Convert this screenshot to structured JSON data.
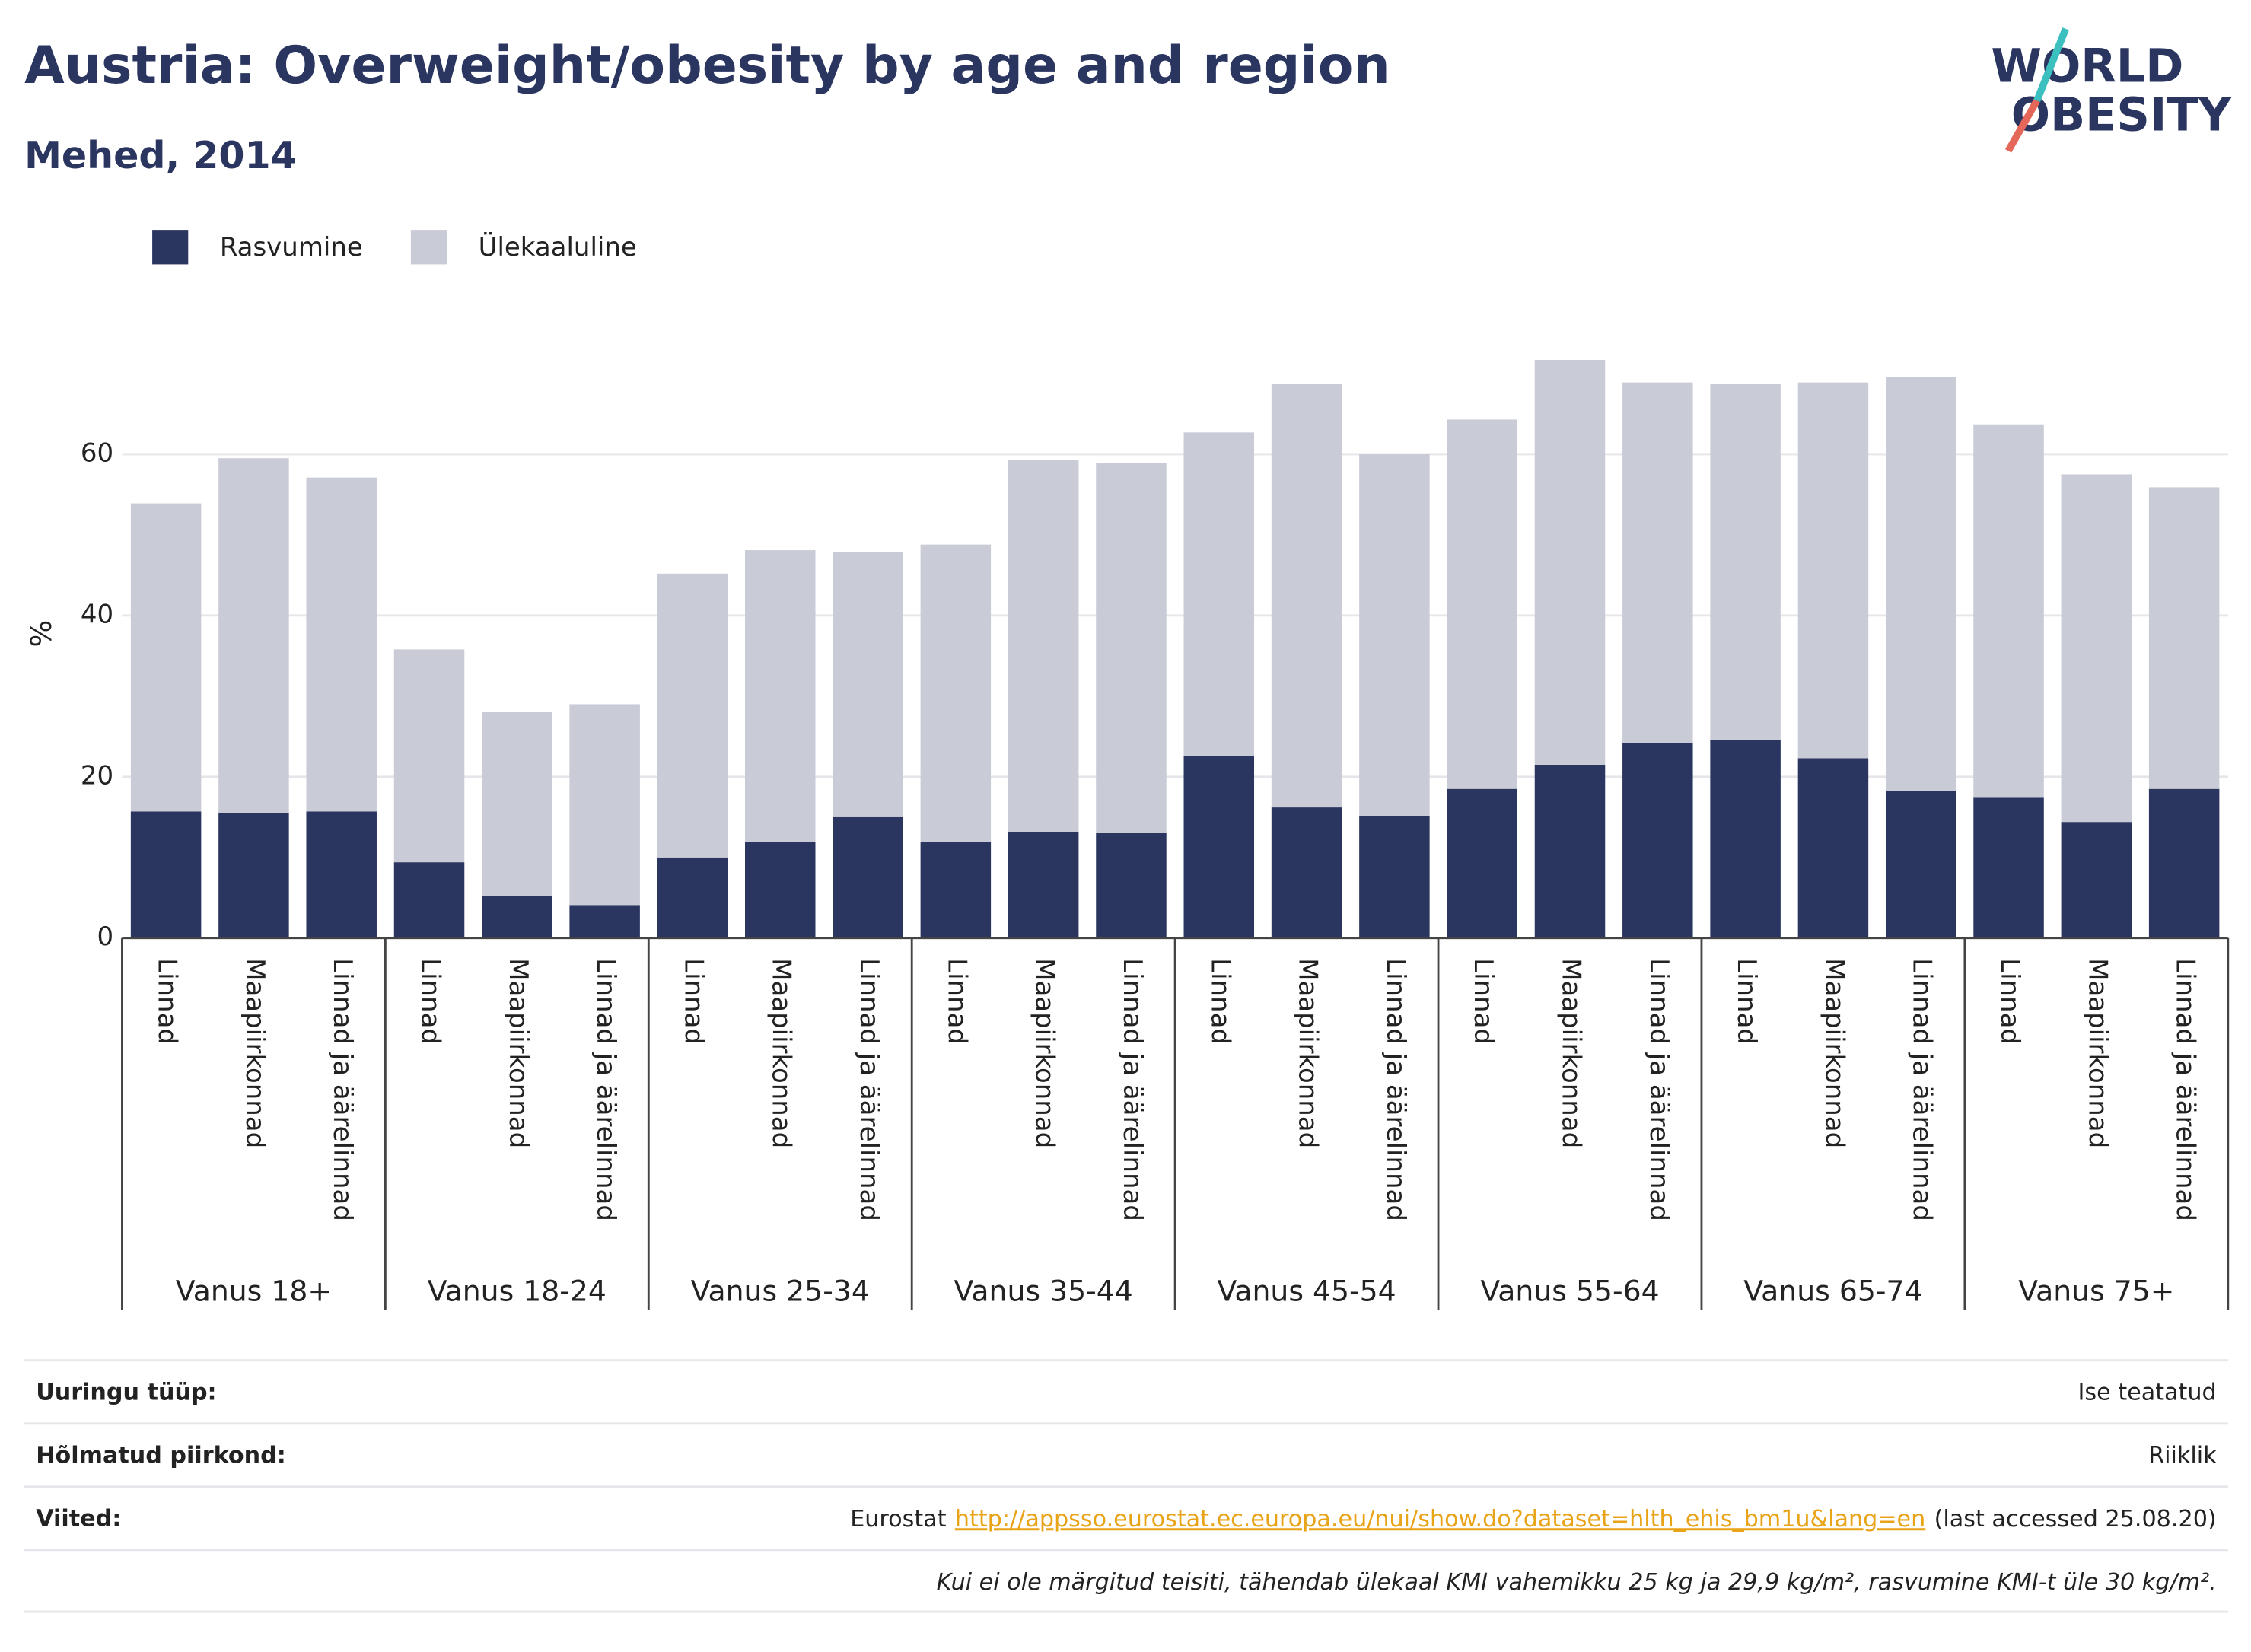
{
  "chart_data": {
    "type": "stacked-bar",
    "title": "Austria: Overweight/obesity by age and region",
    "subtitle": "Mehed, 2014",
    "ylabel": "%",
    "categories": [
      "Linnad",
      "Maapiirkonnad",
      "Linnad ja äärelinnad",
      "Linnad",
      "Maapiirkonnad",
      "Linnad ja äärelinnad",
      "Linnad",
      "Maapiirkonnad",
      "Linnad ja äärelinnad",
      "Linnad",
      "Maapiirkonnad",
      "Linnad ja äärelinnad",
      "Linnad",
      "Maapiirkonnad",
      "Linnad ja äärelinnad",
      "Linnad",
      "Maapiirkonnad",
      "Linnad ja äärelinnad",
      "Linnad",
      "Maapiirkonnad",
      "Linnad ja äärelinnad",
      "Linnad",
      "Maapiirkonnad",
      "Linnad ja äärelinnad"
    ],
    "groups": [
      "Vanus 18+",
      "Vanus 18-24",
      "Vanus 25-34",
      "Vanus 35-44",
      "Vanus 45-54",
      "Vanus 55-64",
      "Vanus 65-74",
      "Vanus 75+"
    ],
    "series": [
      {
        "name": "Rasvumine",
        "color": "#2a3560",
        "values": [
          15.7,
          15.5,
          15.7,
          9.4,
          5.2,
          4.1,
          10.0,
          11.9,
          15.0,
          11.9,
          13.2,
          13.0,
          22.6,
          16.2,
          15.1,
          18.5,
          21.5,
          24.2,
          24.6,
          22.3,
          18.2,
          17.4,
          14.4,
          18.5
        ]
      },
      {
        "name": "Ülekaaluline",
        "color": "#c9cbd6",
        "values": [
          38.2,
          44.0,
          41.4,
          26.4,
          22.8,
          24.9,
          35.2,
          36.2,
          32.9,
          36.9,
          46.1,
          45.9,
          40.1,
          52.5,
          44.9,
          45.8,
          50.2,
          44.7,
          44.1,
          46.6,
          51.4,
          46.3,
          43.1,
          37.4
        ]
      }
    ],
    "ylim": [
      0,
      75
    ],
    "yticks": [
      0,
      20,
      40,
      60
    ],
    "grid": true,
    "legend": "top-left"
  },
  "logo": [
    "WORLD",
    "OBESITY"
  ],
  "footer": {
    "rows": [
      {
        "label": "Uuringu tüüp:",
        "value": "Ise teatatud"
      },
      {
        "label": "Hõlmatud piirkond:",
        "value": "Riiklik"
      },
      {
        "label": "Viited:",
        "source": "Eurostat",
        "link": "http://appsso.eurostat.ec.europa.eu/nui/show.do?dataset=hlth_ehis_bm1u&lang=en",
        "accessed": "(last accessed 25.08.20)"
      }
    ],
    "note": "Kui ei ole märgitud teisiti, tähendab ülekaal KMI vahemikku 25 kg ja 29,9 kg/m², rasvumine KMI-t üle 30 kg/m²."
  }
}
